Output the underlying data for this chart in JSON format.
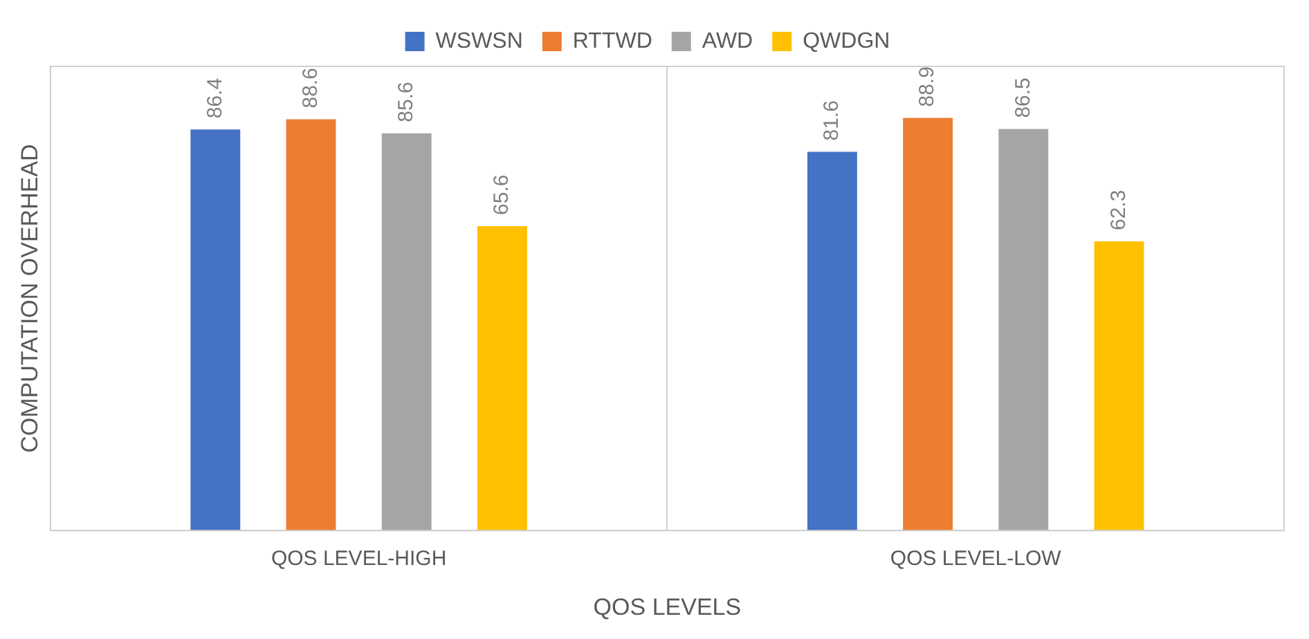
{
  "chart_data": {
    "type": "bar",
    "xlabel": "QOS LEVELS",
    "ylabel": "COMPUTATION OVERHEAD",
    "categories": [
      "QOS LEVEL-HIGH",
      "QOS LEVEL-LOW"
    ],
    "series": [
      {
        "name": "WSWSN",
        "color": "#4472c4",
        "values": [
          86.4,
          81.6
        ]
      },
      {
        "name": "RTTWD",
        "color": "#ed7d31",
        "values": [
          88.6,
          88.9
        ]
      },
      {
        "name": "AWD",
        "color": "#a5a5a5",
        "values": [
          85.6,
          86.5
        ]
      },
      {
        "name": "QWDGN",
        "color": "#ffc000",
        "values": [
          65.6,
          62.3
        ]
      }
    ],
    "ylim": [
      0,
      100
    ],
    "data_labels": true,
    "grid": "x",
    "legend": "top"
  }
}
